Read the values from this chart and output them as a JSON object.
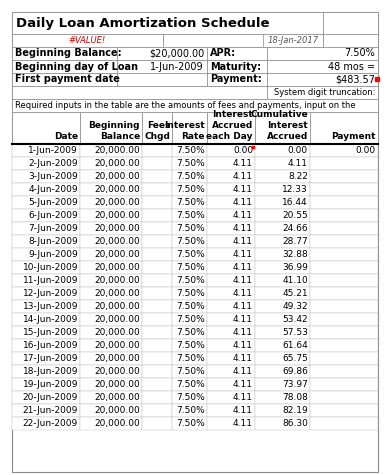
{
  "title": "Daily Loan Amortization Schedule",
  "error_label": "#VALUE!",
  "date_label": "18-Jan-2017",
  "fields_left": [
    [
      "Beginning Balance:",
      "$20,000.00"
    ],
    [
      "Beginning day of Loan",
      "1-Jun-2009"
    ],
    [
      "First payment date",
      ""
    ]
  ],
  "fields_right": [
    [
      "APR:",
      "7.50%"
    ],
    [
      "Maturity:",
      "48 mos ="
    ],
    [
      "Payment:",
      "$483.57"
    ]
  ],
  "system_note": "System digit truncation:",
  "required_note": "Required inputs in the table are the amounts of fees and payments, input on the",
  "rows": [
    [
      "1-Jun-2009",
      "20,000.00",
      "",
      "7.50%",
      "0.00",
      "0.00",
      "0.00"
    ],
    [
      "2-Jun-2009",
      "20,000.00",
      "",
      "7.50%",
      "4.11",
      "4.11",
      ""
    ],
    [
      "3-Jun-2009",
      "20,000.00",
      "",
      "7.50%",
      "4.11",
      "8.22",
      ""
    ],
    [
      "4-Jun-2009",
      "20,000.00",
      "",
      "7.50%",
      "4.11",
      "12.33",
      ""
    ],
    [
      "5-Jun-2009",
      "20,000.00",
      "",
      "7.50%",
      "4.11",
      "16.44",
      ""
    ],
    [
      "6-Jun-2009",
      "20,000.00",
      "",
      "7.50%",
      "4.11",
      "20.55",
      ""
    ],
    [
      "7-Jun-2009",
      "20,000.00",
      "",
      "7.50%",
      "4.11",
      "24.66",
      ""
    ],
    [
      "8-Jun-2009",
      "20,000.00",
      "",
      "7.50%",
      "4.11",
      "28.77",
      ""
    ],
    [
      "9-Jun-2009",
      "20,000.00",
      "",
      "7.50%",
      "4.11",
      "32.88",
      ""
    ],
    [
      "10-Jun-2009",
      "20,000.00",
      "",
      "7.50%",
      "4.11",
      "36.99",
      ""
    ],
    [
      "11-Jun-2009",
      "20,000.00",
      "",
      "7.50%",
      "4.11",
      "41.10",
      ""
    ],
    [
      "12-Jun-2009",
      "20,000.00",
      "",
      "7.50%",
      "4.11",
      "45.21",
      ""
    ],
    [
      "13-Jun-2009",
      "20,000.00",
      "",
      "7.50%",
      "4.11",
      "49.32",
      ""
    ],
    [
      "14-Jun-2009",
      "20,000.00",
      "",
      "7.50%",
      "4.11",
      "53.42",
      ""
    ],
    [
      "15-Jun-2009",
      "20,000.00",
      "",
      "7.50%",
      "4.11",
      "57.53",
      ""
    ],
    [
      "16-Jun-2009",
      "20,000.00",
      "",
      "7.50%",
      "4.11",
      "61.64",
      ""
    ],
    [
      "17-Jun-2009",
      "20,000.00",
      "",
      "7.50%",
      "4.11",
      "65.75",
      ""
    ],
    [
      "18-Jun-2009",
      "20,000.00",
      "",
      "7.50%",
      "4.11",
      "69.86",
      ""
    ],
    [
      "19-Jun-2009",
      "20,000.00",
      "",
      "7.50%",
      "4.11",
      "73.97",
      ""
    ],
    [
      "20-Jun-2009",
      "20,000.00",
      "",
      "7.50%",
      "4.11",
      "78.08",
      ""
    ],
    [
      "21-Jun-2009",
      "20,000.00",
      "",
      "7.50%",
      "4.11",
      "82.19",
      ""
    ],
    [
      "22-Jun-2009",
      "20,000.00",
      "",
      "7.50%",
      "4.11",
      "86.30",
      ""
    ]
  ],
  "bg_color": "#ffffff",
  "grid_color": "#aaaaaa",
  "text_color": "#000000"
}
